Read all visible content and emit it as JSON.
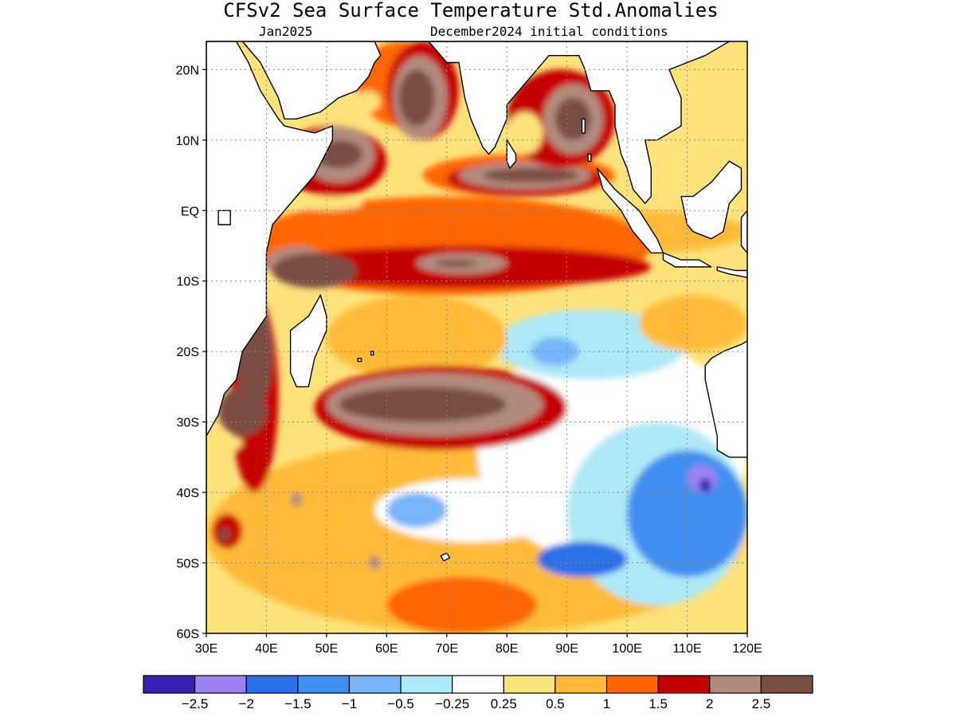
{
  "title": "CFSv2 Sea Surface Temperature Std.Anomalies",
  "subtitle_left": "Jan2025",
  "subtitle_right": "December2024 initial conditions",
  "map": {
    "lon_range": [
      30,
      120
    ],
    "lat_range": [
      -60,
      24
    ],
    "lat_ticks": [
      {
        "value": 20,
        "label": "20N"
      },
      {
        "value": 10,
        "label": "10N"
      },
      {
        "value": 0,
        "label": "EQ"
      },
      {
        "value": -10,
        "label": "10S"
      },
      {
        "value": -20,
        "label": "20S"
      },
      {
        "value": -30,
        "label": "30S"
      },
      {
        "value": -40,
        "label": "40S"
      },
      {
        "value": -50,
        "label": "50S"
      },
      {
        "value": -60,
        "label": "60S"
      }
    ],
    "lon_ticks": [
      {
        "value": 30,
        "label": "30E"
      },
      {
        "value": 40,
        "label": "40E"
      },
      {
        "value": 50,
        "label": "50E"
      },
      {
        "value": 60,
        "label": "60E"
      },
      {
        "value": 70,
        "label": "70E"
      },
      {
        "value": 80,
        "label": "80E"
      },
      {
        "value": 90,
        "label": "90E"
      },
      {
        "value": 100,
        "label": "100E"
      },
      {
        "value": 110,
        "label": "110E"
      },
      {
        "value": 120,
        "label": "120E"
      }
    ],
    "grid": true,
    "land_color": "#ffffff",
    "coast_color": "#000000"
  },
  "colorbar": {
    "colors": [
      "#3a1fb5",
      "#9b82f0",
      "#2a6fe6",
      "#3f8ff0",
      "#78b4f8",
      "#aee9f6",
      "#ffffff",
      "#ffe27a",
      "#ffbb38",
      "#ff6600",
      "#c40000",
      "#b38b7e",
      "#7a4e43"
    ],
    "labels": [
      "-2.5",
      "-2",
      "-1.5",
      "-1",
      "-0.5",
      "-0.25",
      "0.25",
      "0.5",
      "1",
      "1.5",
      "2",
      "2.5"
    ]
  },
  "anomaly_regions": [
    {
      "level": 8,
      "lon": [
        30,
        120
      ],
      "lat": [
        -60,
        -32
      ]
    },
    {
      "level": 9,
      "lon": [
        60,
        85
      ],
      "lat": [
        -60,
        -52
      ]
    },
    {
      "level": 6,
      "lon": [
        58,
        90
      ],
      "lat": [
        -47,
        -38
      ]
    },
    {
      "level": 4,
      "lon": [
        60,
        70
      ],
      "lat": [
        -45,
        -40
      ]
    },
    {
      "level": 6,
      "lon": [
        75,
        120
      ],
      "lat": [
        -50,
        -18
      ]
    },
    {
      "level": 5,
      "lon": [
        78,
        110
      ],
      "lat": [
        -24,
        -14
      ]
    },
    {
      "level": 4,
      "lon": [
        84,
        92
      ],
      "lat": [
        -22,
        -18
      ]
    },
    {
      "level": 5,
      "lon": [
        90,
        120
      ],
      "lat": [
        -56,
        -30
      ]
    },
    {
      "level": 3,
      "lon": [
        100,
        120
      ],
      "lat": [
        -52,
        -34
      ]
    },
    {
      "level": 2,
      "lon": [
        85,
        100
      ],
      "lat": [
        -52,
        -47
      ]
    },
    {
      "level": 1,
      "lon": [
        110,
        115
      ],
      "lat": [
        -40,
        -36
      ]
    },
    {
      "level": 0,
      "lon": [
        112,
        114
      ],
      "lat": [
        -40,
        -38
      ]
    },
    {
      "level": 8,
      "lon": [
        50,
        80
      ],
      "lat": [
        -24,
        -12
      ]
    },
    {
      "level": 8,
      "lon": [
        102,
        120
      ],
      "lat": [
        -20,
        -12
      ]
    },
    {
      "level": 8,
      "lon": [
        85,
        120
      ],
      "lat": [
        -6,
        0
      ]
    },
    {
      "level": 9,
      "lon": [
        36,
        104
      ],
      "lat": [
        -12,
        2
      ]
    },
    {
      "level": 10,
      "lon": [
        40,
        104
      ],
      "lat": [
        -11,
        -5
      ]
    },
    {
      "level": 11,
      "lon": [
        40,
        50
      ],
      "lat": [
        -10,
        -5
      ]
    },
    {
      "level": 12,
      "lon": [
        41,
        55
      ],
      "lat": [
        -11,
        -6
      ]
    },
    {
      "level": 11,
      "lon": [
        65,
        80
      ],
      "lat": [
        -9,
        -6
      ]
    },
    {
      "level": 12,
      "lon": [
        68,
        75
      ],
      "lat": [
        -8,
        -7
      ]
    },
    {
      "level": 10,
      "lon": [
        42,
        60
      ],
      "lat": [
        2,
        12
      ]
    },
    {
      "level": 11,
      "lon": [
        46,
        58
      ],
      "lat": [
        4,
        12
      ]
    },
    {
      "level": 12,
      "lon": [
        48,
        56
      ],
      "lat": [
        6,
        10
      ]
    },
    {
      "level": 9,
      "lon": [
        55,
        70
      ],
      "lat": [
        12,
        24
      ]
    },
    {
      "level": 10,
      "lon": [
        60,
        72
      ],
      "lat": [
        10,
        24
      ]
    },
    {
      "level": 11,
      "lon": [
        61,
        70
      ],
      "lat": [
        10,
        22
      ]
    },
    {
      "level": 12,
      "lon": [
        62,
        68
      ],
      "lat": [
        12,
        20
      ]
    },
    {
      "level": 9,
      "lon": [
        66,
        98
      ],
      "lat": [
        2,
        8
      ]
    },
    {
      "level": 10,
      "lon": [
        70,
        96
      ],
      "lat": [
        2,
        7
      ]
    },
    {
      "level": 11,
      "lon": [
        72,
        94
      ],
      "lat": [
        3,
        7
      ]
    },
    {
      "level": 12,
      "lon": [
        76,
        92
      ],
      "lat": [
        4,
        6
      ]
    },
    {
      "level": 10,
      "lon": [
        80,
        98
      ],
      "lat": [
        6,
        20
      ]
    },
    {
      "level": 11,
      "lon": [
        86,
        96
      ],
      "lat": [
        8,
        18
      ]
    },
    {
      "level": 12,
      "lon": [
        88,
        94
      ],
      "lat": [
        10,
        16
      ]
    },
    {
      "level": 7,
      "lon": [
        80,
        86
      ],
      "lat": [
        8,
        14
      ]
    },
    {
      "level": 10,
      "lon": [
        34,
        42
      ],
      "lat": [
        -40,
        -12
      ]
    },
    {
      "level": 12,
      "lon": [
        35,
        41
      ],
      "lat": [
        -28,
        -13
      ]
    },
    {
      "level": 12,
      "lon": [
        32,
        40
      ],
      "lat": [
        -32,
        -25
      ]
    },
    {
      "level": 10,
      "lon": [
        48,
        90
      ],
      "lat": [
        -34,
        -22
      ]
    },
    {
      "level": 11,
      "lon": [
        50,
        86
      ],
      "lat": [
        -32,
        -23
      ]
    },
    {
      "level": 12,
      "lon": [
        52,
        80
      ],
      "lat": [
        -30,
        -25
      ]
    },
    {
      "level": 10,
      "lon": [
        31,
        36
      ],
      "lat": [
        -48,
        -43
      ]
    },
    {
      "level": 12,
      "lon": [
        32,
        34
      ],
      "lat": [
        -47,
        -45
      ]
    },
    {
      "level": 11,
      "lon": [
        44,
        46
      ],
      "lat": [
        -42,
        -40
      ]
    },
    {
      "level": 11,
      "lon": [
        57,
        59
      ],
      "lat": [
        -51,
        -49
      ]
    },
    {
      "level": 7,
      "lon": [
        32,
        36
      ],
      "lat": [
        -34,
        -32
      ]
    },
    {
      "level": 7,
      "lon": [
        44,
        56
      ],
      "lat": [
        0,
        2
      ]
    },
    {
      "level": 7,
      "lon": [
        55,
        59
      ],
      "lat": [
        14,
        17
      ]
    }
  ],
  "land": [
    {
      "name": "africa",
      "lonlat": [
        [
          30,
          24
        ],
        [
          35,
          24
        ],
        [
          37,
          21
        ],
        [
          39,
          17
        ],
        [
          42,
          13
        ],
        [
          43,
          12
        ],
        [
          48,
          11
        ],
        [
          51,
          12
        ],
        [
          51,
          10
        ],
        [
          48,
          5
        ],
        [
          45,
          2
        ],
        [
          41,
          -2
        ],
        [
          40,
          -6
        ],
        [
          40,
          -10
        ],
        [
          40,
          -15
        ],
        [
          36,
          -20
        ],
        [
          35,
          -24
        ],
        [
          33,
          -26
        ],
        [
          32,
          -29
        ],
        [
          30,
          -32
        ],
        [
          30,
          24
        ]
      ]
    },
    {
      "name": "arabia",
      "lonlat": [
        [
          36,
          24
        ],
        [
          39,
          21
        ],
        [
          42,
          16
        ],
        [
          43,
          13
        ],
        [
          45,
          13
        ],
        [
          49,
          14
        ],
        [
          52,
          16
        ],
        [
          55,
          17
        ],
        [
          57,
          19
        ],
        [
          58,
          21
        ],
        [
          59,
          22
        ],
        [
          58,
          24
        ],
        [
          36,
          24
        ]
      ]
    },
    {
      "name": "india",
      "lonlat": [
        [
          67,
          24
        ],
        [
          69,
          22
        ],
        [
          70,
          21
        ],
        [
          72,
          21
        ],
        [
          73,
          16
        ],
        [
          74,
          13
        ],
        [
          75,
          11
        ],
        [
          76,
          9
        ],
        [
          77,
          8
        ],
        [
          78,
          9
        ],
        [
          80,
          13
        ],
        [
          80,
          15
        ],
        [
          82,
          17
        ],
        [
          85,
          20
        ],
        [
          87,
          22
        ],
        [
          88,
          22
        ],
        [
          90,
          22
        ],
        [
          92,
          22
        ],
        [
          93,
          20
        ],
        [
          94,
          17
        ],
        [
          97,
          17
        ],
        [
          98,
          15
        ],
        [
          98,
          12
        ],
        [
          99,
          8
        ],
        [
          100,
          6
        ],
        [
          101,
          3
        ],
        [
          103,
          1
        ],
        [
          104,
          2
        ],
        [
          104,
          6
        ],
        [
          103,
          10
        ],
        [
          105,
          10
        ],
        [
          109,
          12
        ],
        [
          109,
          16
        ],
        [
          107,
          20
        ],
        [
          110,
          21
        ],
        [
          113,
          22
        ],
        [
          115,
          23
        ],
        [
          117,
          24
        ],
        [
          67,
          24
        ]
      ]
    },
    {
      "name": "sri-lanka",
      "lonlat": [
        [
          80,
          10
        ],
        [
          81.5,
          8
        ],
        [
          81.5,
          7
        ],
        [
          80.5,
          6
        ],
        [
          80,
          7
        ],
        [
          80,
          10
        ]
      ]
    },
    {
      "name": "sumatra",
      "lonlat": [
        [
          95,
          6
        ],
        [
          98,
          3
        ],
        [
          102,
          0
        ],
        [
          105,
          -4
        ],
        [
          106,
          -6
        ],
        [
          104,
          -6
        ],
        [
          101,
          -3
        ],
        [
          99,
          0
        ],
        [
          96,
          3
        ],
        [
          95,
          6
        ]
      ]
    },
    {
      "name": "borneo",
      "lonlat": [
        [
          109,
          2
        ],
        [
          111,
          2
        ],
        [
          114,
          4
        ],
        [
          117,
          7
        ],
        [
          119,
          6
        ],
        [
          119,
          3
        ],
        [
          117,
          1
        ],
        [
          116,
          -3
        ],
        [
          114,
          -4
        ],
        [
          111,
          -3
        ],
        [
          110,
          -2
        ],
        [
          109,
          2
        ]
      ]
    },
    {
      "name": "java",
      "lonlat": [
        [
          106,
          -6
        ],
        [
          109,
          -7
        ],
        [
          112,
          -7
        ],
        [
          114,
          -8
        ],
        [
          111,
          -8
        ],
        [
          108,
          -8
        ],
        [
          106,
          -7
        ],
        [
          106,
          -6
        ]
      ]
    },
    {
      "name": "lesser-sunda",
      "lonlat": [
        [
          115,
          -8
        ],
        [
          118,
          -8.5
        ],
        [
          120,
          -8.5
        ],
        [
          120,
          -9.5
        ],
        [
          117,
          -9
        ],
        [
          115,
          -8.5
        ],
        [
          115,
          -8
        ]
      ]
    },
    {
      "name": "sulawesi",
      "lonlat": [
        [
          119,
          -1
        ],
        [
          120,
          0
        ],
        [
          120,
          -4
        ],
        [
          120,
          -6
        ],
        [
          119,
          -5
        ],
        [
          119,
          -1
        ]
      ]
    },
    {
      "name": "madagascar",
      "lonlat": [
        [
          49,
          -12
        ],
        [
          50,
          -15
        ],
        [
          50,
          -17
        ],
        [
          48,
          -21
        ],
        [
          47,
          -25
        ],
        [
          45,
          -25
        ],
        [
          44,
          -23
        ],
        [
          44,
          -20
        ],
        [
          44,
          -17
        ],
        [
          47,
          -15
        ],
        [
          49,
          -12
        ]
      ]
    },
    {
      "name": "australia",
      "lonlat": [
        [
          113,
          -22
        ],
        [
          114,
          -21
        ],
        [
          116,
          -20
        ],
        [
          119,
          -19
        ],
        [
          121,
          -18
        ],
        [
          120,
          -35
        ],
        [
          117,
          -35
        ],
        [
          115,
          -34
        ],
        [
          115,
          -32
        ],
        [
          114,
          -28
        ],
        [
          113,
          -24
        ],
        [
          113,
          -22
        ]
      ]
    },
    {
      "name": "lake-victoria",
      "lonlat": [
        [
          32,
          0
        ],
        [
          34,
          0
        ],
        [
          34,
          -2
        ],
        [
          32,
          -2
        ],
        [
          32,
          0
        ]
      ]
    },
    {
      "name": "mauritius",
      "lonlat": [
        [
          57.4,
          -20
        ],
        [
          57.8,
          -20
        ],
        [
          57.8,
          -20.5
        ],
        [
          57.4,
          -20.5
        ],
        [
          57.4,
          -20
        ]
      ]
    },
    {
      "name": "reunion",
      "lonlat": [
        [
          55.2,
          -21
        ],
        [
          55.8,
          -21
        ],
        [
          55.8,
          -21.4
        ],
        [
          55.2,
          -21.4
        ],
        [
          55.2,
          -21
        ]
      ]
    },
    {
      "name": "kerguelen",
      "lonlat": [
        [
          69,
          -49
        ],
        [
          70,
          -48.6
        ],
        [
          70.5,
          -49.3
        ],
        [
          69.5,
          -49.7
        ],
        [
          69,
          -49
        ]
      ]
    },
    {
      "name": "andaman",
      "lonlat": [
        [
          92.5,
          13
        ],
        [
          93,
          13
        ],
        [
          93,
          11
        ],
        [
          92.5,
          11
        ],
        [
          92.5,
          13
        ]
      ]
    },
    {
      "name": "nicobar",
      "lonlat": [
        [
          93.5,
          8
        ],
        [
          94,
          8
        ],
        [
          94,
          7
        ],
        [
          93.5,
          7
        ],
        [
          93.5,
          8
        ]
      ]
    }
  ]
}
